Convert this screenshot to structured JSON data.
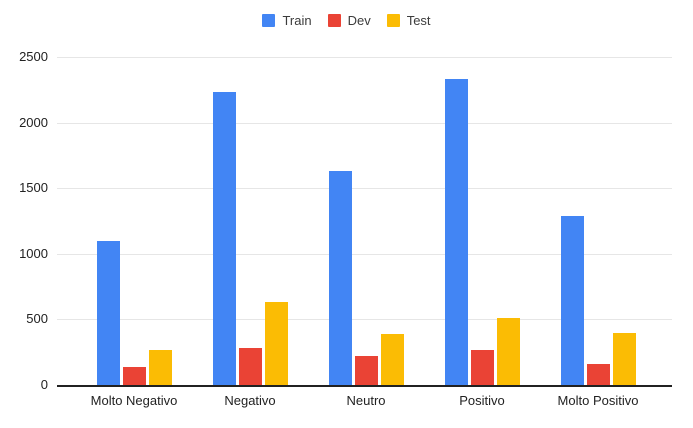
{
  "chart_data": {
    "type": "bar",
    "title": "",
    "xlabel": "",
    "ylabel": "",
    "categories": [
      "Molto Negativo",
      "Negativo",
      "Neutro",
      "Positivo",
      "Molto Positivo"
    ],
    "series": [
      {
        "name": "Train",
        "color": "#4285F4",
        "values": [
          1095,
          2230,
          1630,
          2330,
          1285
        ]
      },
      {
        "name": "Dev",
        "color": "#EA4335",
        "values": [
          135,
          285,
          220,
          265,
          160
        ]
      },
      {
        "name": "Test",
        "color": "#FBBC04",
        "values": [
          270,
          630,
          390,
          510,
          395
        ]
      }
    ],
    "ylim": [
      0,
      2500
    ],
    "yticks": [
      0,
      500,
      1000,
      1500,
      2000,
      2500
    ],
    "grid": true,
    "legend_position": "top"
  },
  "colors": {
    "background": "#ffffff",
    "gridline": "#e6e6e6",
    "axis_line": "#212121",
    "tick_text": "#222222",
    "legend_text": "#3c3c3c"
  }
}
